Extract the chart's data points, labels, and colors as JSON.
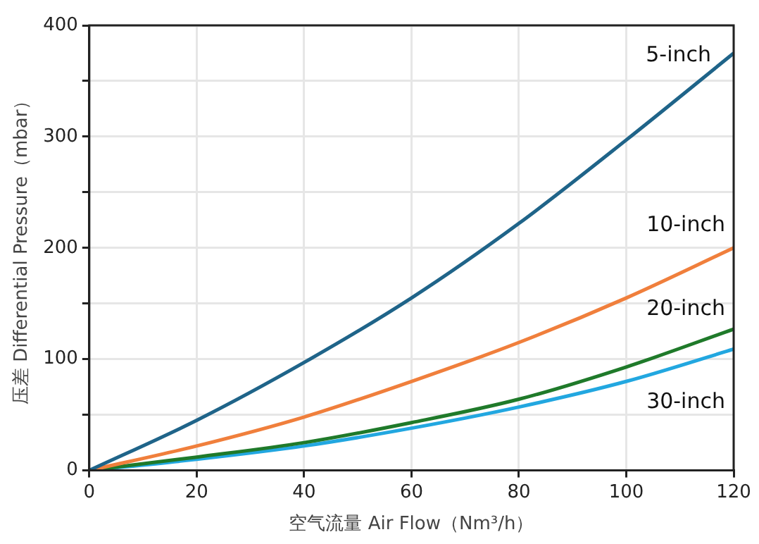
{
  "chart_data": {
    "type": "line",
    "xlabel": "空气流量 Air Flow（Nm³/h）",
    "ylabel": "压差 Differential Pressure（mbar）",
    "x": [
      0,
      20,
      40,
      60,
      80,
      100,
      120
    ],
    "series": [
      {
        "name": "5-inch",
        "color": "#1f6489",
        "values": [
          0,
          45,
          97,
          155,
          222,
          297,
          375
        ]
      },
      {
        "name": "10-inch",
        "color": "#f07f3c",
        "values": [
          0,
          22,
          48,
          80,
          115,
          155,
          200
        ]
      },
      {
        "name": "20-inch",
        "color": "#1f7a2a",
        "values": [
          0,
          12,
          25,
          43,
          64,
          93,
          127
        ]
      },
      {
        "name": "30-inch",
        "color": "#22a7e0",
        "values": [
          0,
          10,
          22,
          38,
          57,
          80,
          109
        ]
      }
    ],
    "xlim": [
      0,
      120
    ],
    "xticks": [
      0,
      20,
      40,
      60,
      80,
      100,
      120
    ],
    "ylim": [
      0,
      400
    ],
    "yticks": [
      0,
      {
        "value": 50,
        "label": null
      },
      100,
      {
        "value": 150,
        "label": null
      },
      200,
      {
        "value": 250,
        "label": null
      },
      300,
      {
        "value": 350,
        "label": null
      },
      400
    ],
    "grid": true,
    "legend": false,
    "marker": "none",
    "line_style": "solid"
  }
}
